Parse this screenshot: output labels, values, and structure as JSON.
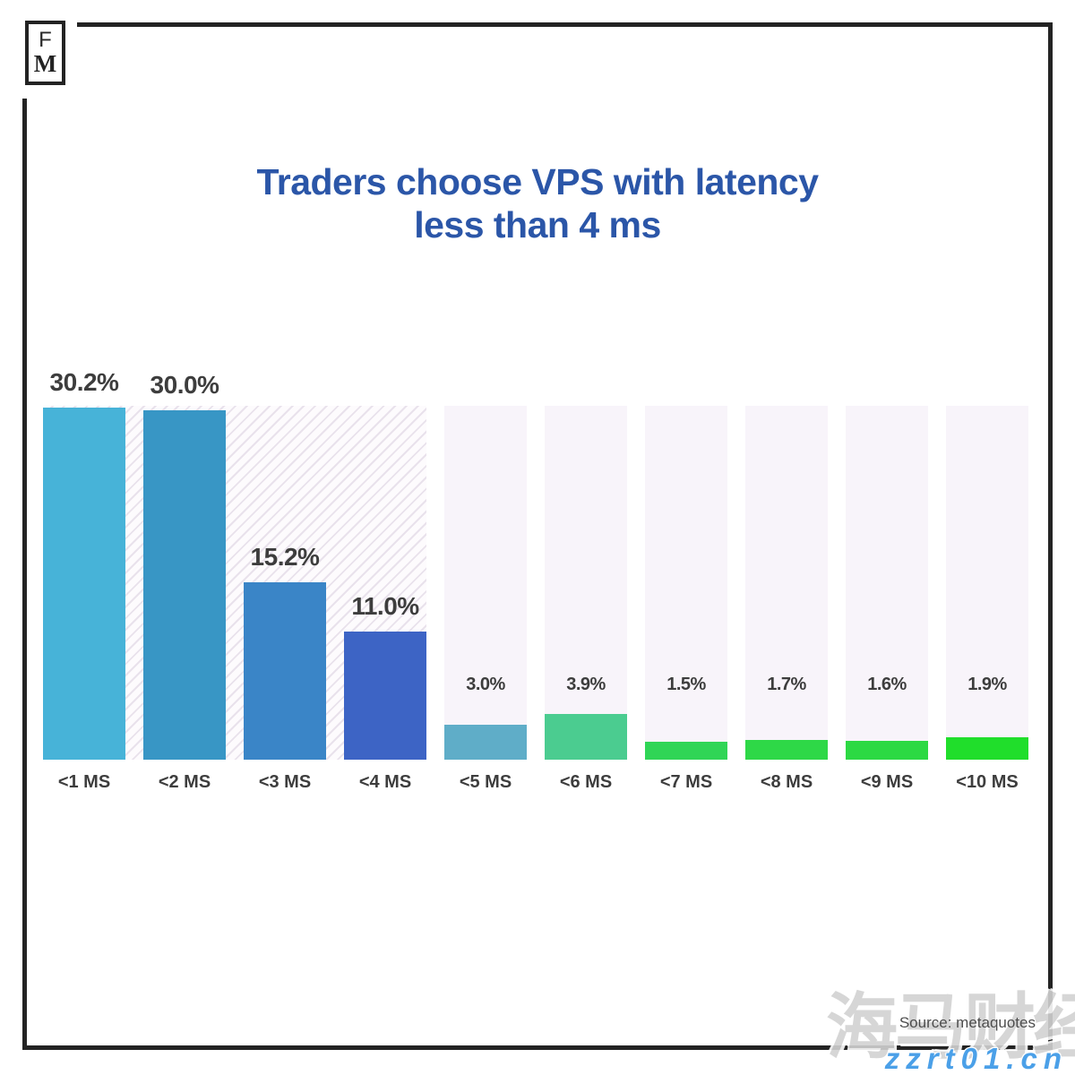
{
  "logo": {
    "letter_top": "F",
    "letter_bottom": "M"
  },
  "title": {
    "line1": "Traders choose VPS with latency",
    "line2": "less than 4 ms"
  },
  "chart_data": {
    "type": "bar",
    "title": "Traders choose VPS with latency less than 4 ms",
    "categories": [
      "<1 MS",
      "<2 MS",
      "<3 MS",
      "<4 MS",
      "<5 MS",
      "<6 MS",
      "<7 MS",
      "<8 MS",
      "<9 MS",
      "<10 MS"
    ],
    "values": [
      30.2,
      30.0,
      15.2,
      11.0,
      3.0,
      3.9,
      1.5,
      1.7,
      1.6,
      1.9
    ],
    "value_labels": [
      "30.2%",
      "30.0%",
      "15.2%",
      "11.0%",
      "3.0%",
      "3.9%",
      "1.5%",
      "1.7%",
      "1.6%",
      "1.9%"
    ],
    "bar_colors": [
      "#47b3d8",
      "#3896c5",
      "#3a85c7",
      "#3d64c5",
      "#5fadc8",
      "#4bcc90",
      "#30d556",
      "#2ed847",
      "#2cd943",
      "#20de2b"
    ],
    "highlighted_categories": [
      "<1 MS",
      "<2 MS",
      "<3 MS",
      "<4 MS"
    ],
    "highlight_style": "hatched-background-band",
    "plain_column_background": "#f8f4fa",
    "xlabel": "",
    "ylabel": "",
    "ylim": [
      0,
      30.2
    ],
    "grid": "off",
    "legend": "none"
  },
  "source": {
    "text": "Source: metaquotes"
  },
  "watermarks": {
    "brand_cn": "海马财经",
    "site_url": "zzrt01.cn"
  },
  "colors": {
    "title_blue": "#2b56a8",
    "label_gray": "#3d3d3d",
    "frame_dark": "#232323",
    "hatch_stripe": "#e9e2ec"
  }
}
